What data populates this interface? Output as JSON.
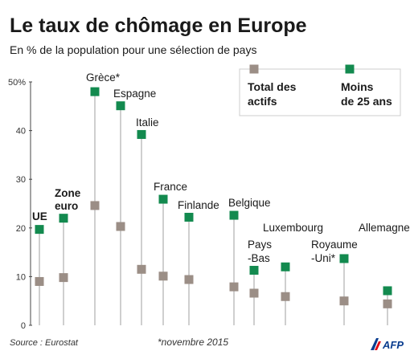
{
  "chart_data": {
    "type": "scatter",
    "title": "Le taux de chômage en Europe",
    "subtitle": "En % de la population pour une sélection de pays",
    "ylim": [
      0,
      50
    ],
    "yticks": [
      "50%",
      "40",
      "30",
      "20",
      "10",
      "0"
    ],
    "grid": false,
    "legend_position": "top-right",
    "categories": [
      {
        "label": [
          "UE"
        ],
        "bold": true
      },
      {
        "label": [
          "Zone",
          "euro"
        ],
        "bold": true
      },
      {
        "label": [
          "Grèce*"
        ],
        "bold": false
      },
      {
        "label": [
          "Espagne"
        ],
        "bold": false
      },
      {
        "label": [
          "Italie"
        ],
        "bold": false
      },
      {
        "label": [
          "France"
        ],
        "bold": false
      },
      {
        "label": [
          "Finlande"
        ],
        "bold": false
      },
      {
        "label": [
          "Belgique"
        ],
        "bold": false
      },
      {
        "label": [
          "Pays",
          "-Bas"
        ],
        "bold": false
      },
      {
        "label": [
          "Luxembourg"
        ],
        "bold": false
      },
      {
        "label": [
          "Royaume",
          "-Uni*"
        ],
        "bold": false
      },
      {
        "label": [
          "Allemagne"
        ],
        "bold": false
      }
    ],
    "series": [
      {
        "name": "Total des actifs",
        "color": "#9b8e86",
        "values": [
          9.0,
          9.8,
          24.6,
          20.3,
          11.5,
          10.1,
          9.4,
          7.9,
          6.6,
          5.9,
          5.0,
          4.4
        ]
      },
      {
        "name": "Moins de 25 ans",
        "color": "#138a4f",
        "values": [
          19.7,
          22.0,
          48.0,
          45.1,
          39.2,
          25.9,
          22.2,
          22.6,
          11.3,
          12.0,
          13.7,
          7.1
        ]
      }
    ],
    "legend": [
      {
        "lines": [
          "Total des",
          "actifs"
        ],
        "color": "#9b8e86"
      },
      {
        "lines": [
          "Moins",
          "de 25 ans"
        ],
        "color": "#138a4f"
      }
    ]
  },
  "source": "Source : Eurostat",
  "footnote": "*novembre 2015",
  "logo": "AFP",
  "colors": {
    "stem": "#b5b5b5",
    "axis": "#444444",
    "text": "#1a1a1a",
    "logo": "#0a3d8f"
  }
}
